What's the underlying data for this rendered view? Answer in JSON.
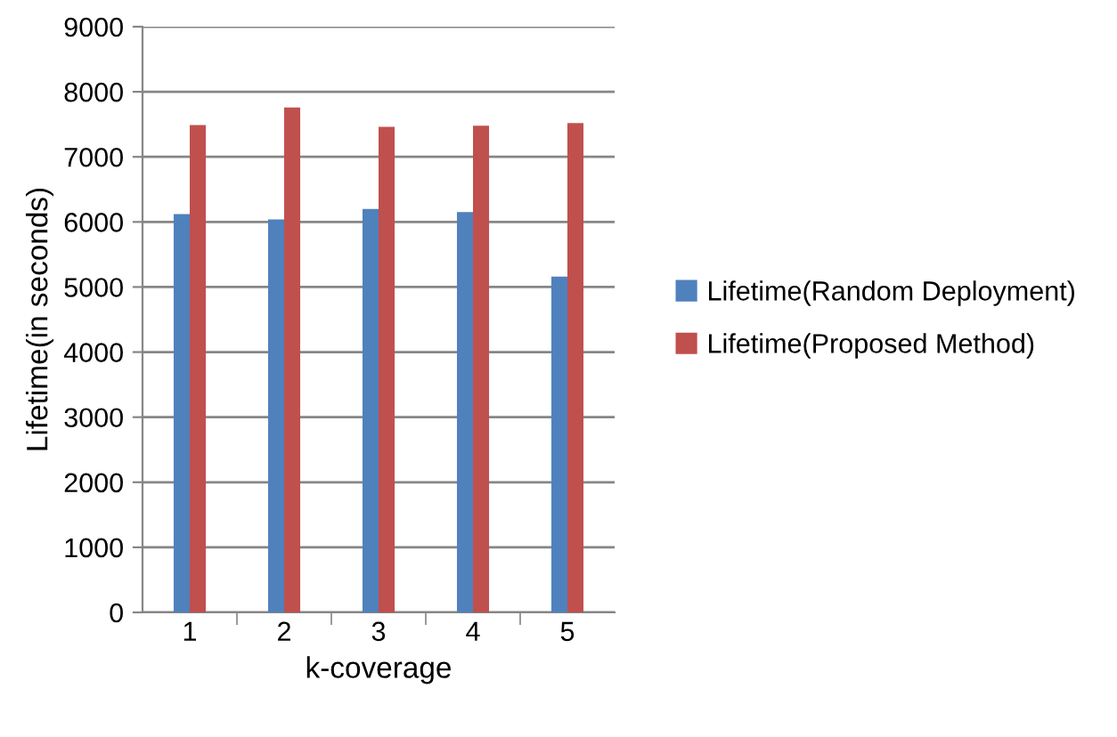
{
  "chart_data": {
    "type": "bar",
    "xlabel": "k-coverage",
    "ylabel": "Lifetime(in seconds)",
    "categories": [
      "1",
      "2",
      "3",
      "4",
      "5"
    ],
    "series": [
      {
        "name": "Lifetime(Random Deployment)",
        "color": "#4f81bd",
        "values": [
          6120,
          6040,
          6200,
          6150,
          5160
        ]
      },
      {
        "name": "Lifetime(Proposed Method)",
        "color": "#c0504d",
        "values": [
          7490,
          7760,
          7460,
          7480,
          7520
        ]
      }
    ],
    "ylim": [
      0,
      9000
    ],
    "yticks": [
      0,
      1000,
      2000,
      3000,
      4000,
      5000,
      6000,
      7000,
      8000,
      9000
    ],
    "grid": "y",
    "legend": "right"
  }
}
